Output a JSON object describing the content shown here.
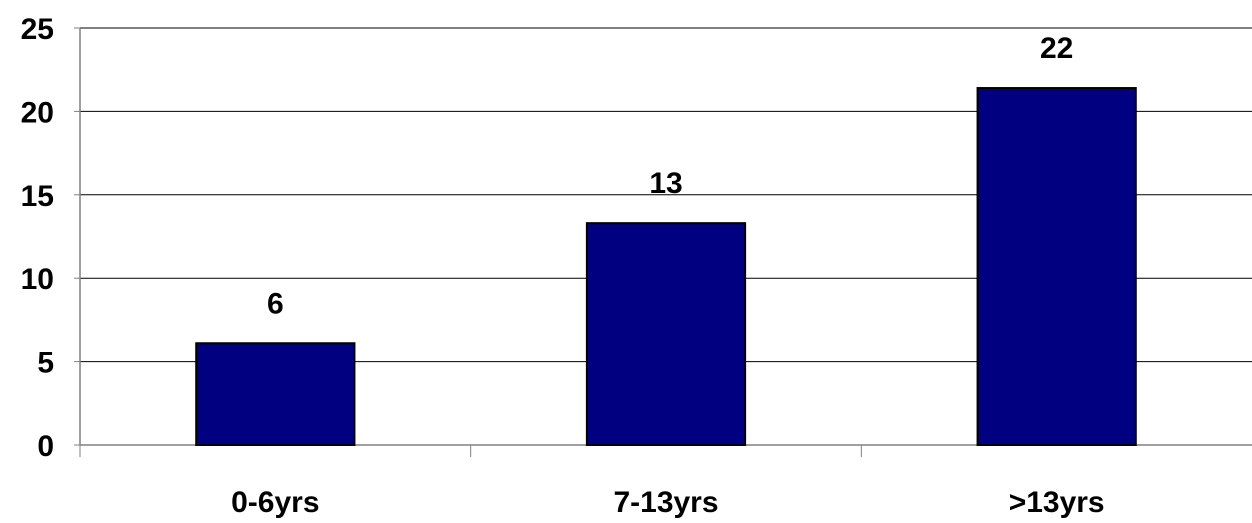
{
  "chart_data": {
    "type": "bar",
    "categories": [
      "0-6yrs",
      "7-13yrs",
      ">13yrs"
    ],
    "values": [
      6,
      13,
      22
    ],
    "bar_heights": [
      6.1,
      13.3,
      21.4
    ],
    "data_labels": [
      "6",
      "13",
      "22"
    ],
    "y_ticks": [
      "0",
      "5",
      "10",
      "15",
      "20",
      "25"
    ],
    "ylim": [
      0,
      25
    ],
    "grid": true,
    "colors": {
      "bar_fill": "#000080",
      "bar_stroke": "#000000",
      "grid": "#000000",
      "axis": "#808080"
    }
  }
}
